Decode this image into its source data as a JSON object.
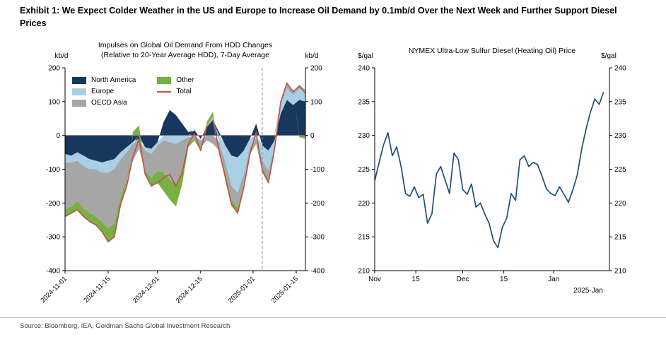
{
  "exhibit": {
    "title": "Exhibit 1: We Expect Colder Weather in the US and Europe to Increase Oil Demand by 0.1mb/d Over the Next Week and Further Support Diesel Prices",
    "source": "Source: Bloomberg, IEA, Goldman Sachs Global Investment Research"
  },
  "chart_data": [
    {
      "type": "area",
      "title_line1": "Impulses on Global Oil Demand From HDD Changes",
      "title_line2": "(Relative to 20-Year Average HDD), 7-Day Average",
      "unit_left": "kb/d",
      "unit_right": "kb/d",
      "ylim": [
        -400,
        200
      ],
      "yticks": [
        200,
        100,
        0,
        -100,
        -200,
        -300,
        -400
      ],
      "xlim": [
        0,
        78
      ],
      "x_ticks": [
        {
          "day": 0,
          "label": "2024-11-01"
        },
        {
          "day": 14,
          "label": "2024-11-15"
        },
        {
          "day": 30,
          "label": "2024-12-01"
        },
        {
          "day": 44,
          "label": "2024-12-15"
        },
        {
          "day": 61,
          "label": "2025-01-01"
        },
        {
          "day": 75,
          "label": "2025-01-15"
        }
      ],
      "dashed_vline_day": 64,
      "grid": false,
      "legend_position": "upper-left-inside",
      "x": [
        0,
        2,
        4,
        6,
        8,
        10,
        12,
        14,
        16,
        18,
        20,
        22,
        24,
        26,
        28,
        30,
        32,
        34,
        36,
        38,
        40,
        42,
        44,
        46,
        48,
        50,
        52,
        54,
        56,
        58,
        60,
        62,
        64,
        66,
        68,
        70,
        72,
        74,
        76,
        78
      ],
      "series": [
        {
          "name": "North America",
          "color": "#17375E",
          "values": [
            -55,
            -60,
            -50,
            -60,
            -70,
            -75,
            -80,
            -75,
            -70,
            -50,
            -35,
            -20,
            -10,
            -35,
            -40,
            -20,
            40,
            75,
            60,
            35,
            10,
            15,
            -10,
            25,
            45,
            10,
            -30,
            -60,
            -65,
            -45,
            -10,
            35,
            -30,
            -45,
            -15,
            65,
            105,
            90,
            105,
            100
          ]
        },
        {
          "name": "Europe",
          "color": "#A9CFE5",
          "values": [
            -25,
            -20,
            -25,
            -30,
            -30,
            -25,
            -30,
            -35,
            -30,
            -20,
            -15,
            -5,
            0,
            -10,
            -15,
            -10,
            -15,
            -20,
            -25,
            -15,
            -5,
            5,
            -5,
            5,
            10,
            -20,
            -50,
            -90,
            -105,
            -70,
            -25,
            -10,
            -45,
            -60,
            -20,
            25,
            35,
            30,
            35,
            30
          ]
        },
        {
          "name": "OECD Asia",
          "color": "#A6A6A6",
          "values": [
            -140,
            -130,
            -120,
            -125,
            -130,
            -140,
            -145,
            -165,
            -160,
            -110,
            -85,
            -50,
            -30,
            -60,
            -70,
            -75,
            -95,
            -110,
            -120,
            -90,
            -20,
            -10,
            -20,
            -15,
            -25,
            -25,
            -30,
            -40,
            -45,
            -30,
            -15,
            -10,
            -20,
            -25,
            -10,
            5,
            10,
            10,
            10,
            5
          ]
        },
        {
          "name": "Other",
          "color": "#77B043",
          "values": [
            -20,
            -20,
            -25,
            -25,
            -25,
            -25,
            -30,
            -40,
            -40,
            -25,
            -15,
            10,
            30,
            -10,
            -25,
            -35,
            -55,
            -60,
            -65,
            -40,
            -10,
            -5,
            -10,
            10,
            15,
            -10,
            -15,
            -15,
            -15,
            -10,
            -5,
            -5,
            -10,
            -10,
            5,
            5,
            5,
            0,
            -5,
            -10
          ]
        }
      ],
      "total": {
        "name": "Total",
        "color": "#C0504D",
        "values": [
          -240,
          -230,
          -220,
          -240,
          -255,
          -265,
          -285,
          -315,
          -300,
          -205,
          -150,
          -65,
          -10,
          -115,
          -150,
          -140,
          -125,
          -115,
          -150,
          -110,
          -25,
          5,
          -45,
          25,
          45,
          -45,
          -125,
          -205,
          -230,
          -155,
          -55,
          10,
          -105,
          -140,
          -40,
          100,
          155,
          130,
          145,
          125
        ]
      }
    },
    {
      "type": "line",
      "title": "NYMEX Ultra-Low Sulfur Diesel (Heating Oil) Price",
      "unit_left": "$/gal",
      "unit_right": "$/gal",
      "ylim": [
        210,
        240
      ],
      "yticks": [
        240,
        235,
        230,
        225,
        220,
        215,
        210
      ],
      "xlim": [
        0,
        80
      ],
      "x_ticks": [
        {
          "day": 0,
          "label": "Nov"
        },
        {
          "day": 14,
          "label": "15"
        },
        {
          "day": 30,
          "label": "Dec"
        },
        {
          "day": 44,
          "label": "15"
        },
        {
          "day": 61,
          "label": "Jan"
        }
      ],
      "x_axis_note": "2025-Jan",
      "color": "#1F4E79",
      "grid": false,
      "x": [
        0,
        1.5,
        3,
        4.5,
        6,
        7.5,
        9,
        10.5,
        12,
        13.5,
        15,
        16.5,
        18,
        19.5,
        21,
        22.5,
        24,
        25.5,
        27,
        28.5,
        30,
        31.5,
        33,
        34.5,
        36,
        37.5,
        39,
        40.5,
        42,
        43.5,
        45,
        46.5,
        48,
        49.5,
        51,
        52.5,
        54,
        55.5,
        57,
        58.5,
        60,
        61.5,
        63,
        64.5,
        66,
        67.5,
        69,
        70.5,
        72,
        73.5,
        75,
        76.5,
        78
      ],
      "values": [
        223.3,
        226.0,
        228.6,
        230.4,
        227.0,
        228.3,
        225.4,
        221.4,
        221.0,
        222.4,
        220.8,
        221.3,
        217.0,
        218.4,
        224.3,
        225.4,
        223.4,
        221.4,
        227.4,
        226.4,
        222.0,
        221.3,
        222.8,
        219.4,
        220.0,
        218.4,
        217.0,
        214.4,
        213.4,
        216.4,
        217.8,
        221.4,
        220.4,
        226.4,
        227.0,
        225.4,
        226.0,
        225.7,
        224.0,
        222.1,
        221.4,
        221.1,
        222.4,
        221.3,
        220.1,
        221.9,
        224.1,
        227.9,
        230.9,
        233.4,
        235.4,
        234.6,
        236.4
      ]
    }
  ]
}
